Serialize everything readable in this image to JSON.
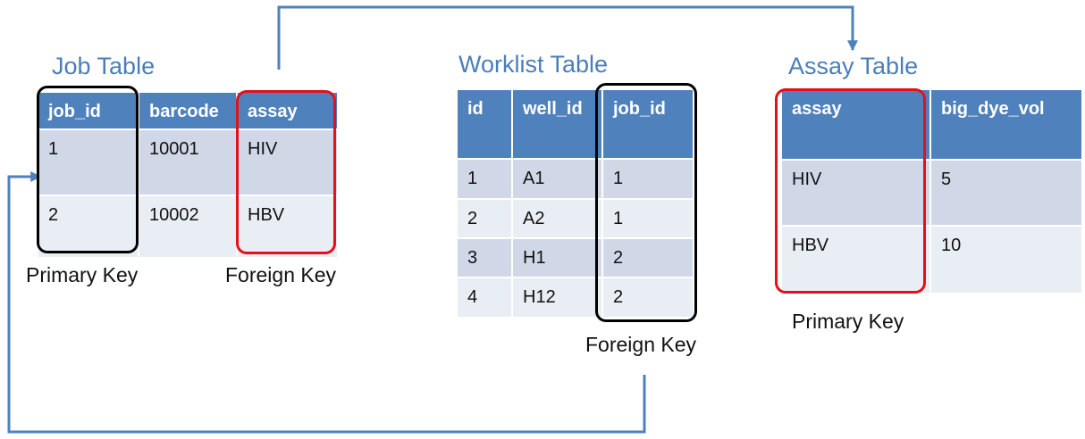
{
  "job_table": {
    "title": "Job Table",
    "columns": [
      "job_id",
      "barcode",
      "assay"
    ],
    "rows": [
      [
        "1",
        "10001",
        "HIV"
      ],
      [
        "2",
        "10002",
        "HBV"
      ]
    ],
    "primary_key_label": "Primary Key",
    "foreign_key_label": "Foreign Key"
  },
  "worklist_table": {
    "title": "Worklist Table",
    "columns": [
      "id",
      "well_id",
      "job_id"
    ],
    "rows": [
      [
        "1",
        "A1",
        "1"
      ],
      [
        "2",
        "A2",
        "1"
      ],
      [
        "3",
        "H1",
        "2"
      ],
      [
        "4",
        "H12",
        "2"
      ]
    ],
    "foreign_key_label": "Foreign Key"
  },
  "assay_table": {
    "title": "Assay Table",
    "columns": [
      "assay",
      "big_dye_vol"
    ],
    "rows": [
      [
        "HIV",
        "5"
      ],
      [
        "HBV",
        "10"
      ]
    ],
    "primary_key_label": "Primary Key"
  },
  "colors": {
    "title": "#4a7ebb",
    "header_fill": "#4f81bd",
    "row_odd": "#d0d8e8",
    "row_even": "#e9edf4",
    "primary_key_outline_job": "#000000",
    "foreign_key_outline_job": "#e4101b",
    "foreign_key_outline_worklist": "#000000",
    "primary_key_outline_assay": "#e4101b",
    "arrow": "#4f81bd"
  }
}
